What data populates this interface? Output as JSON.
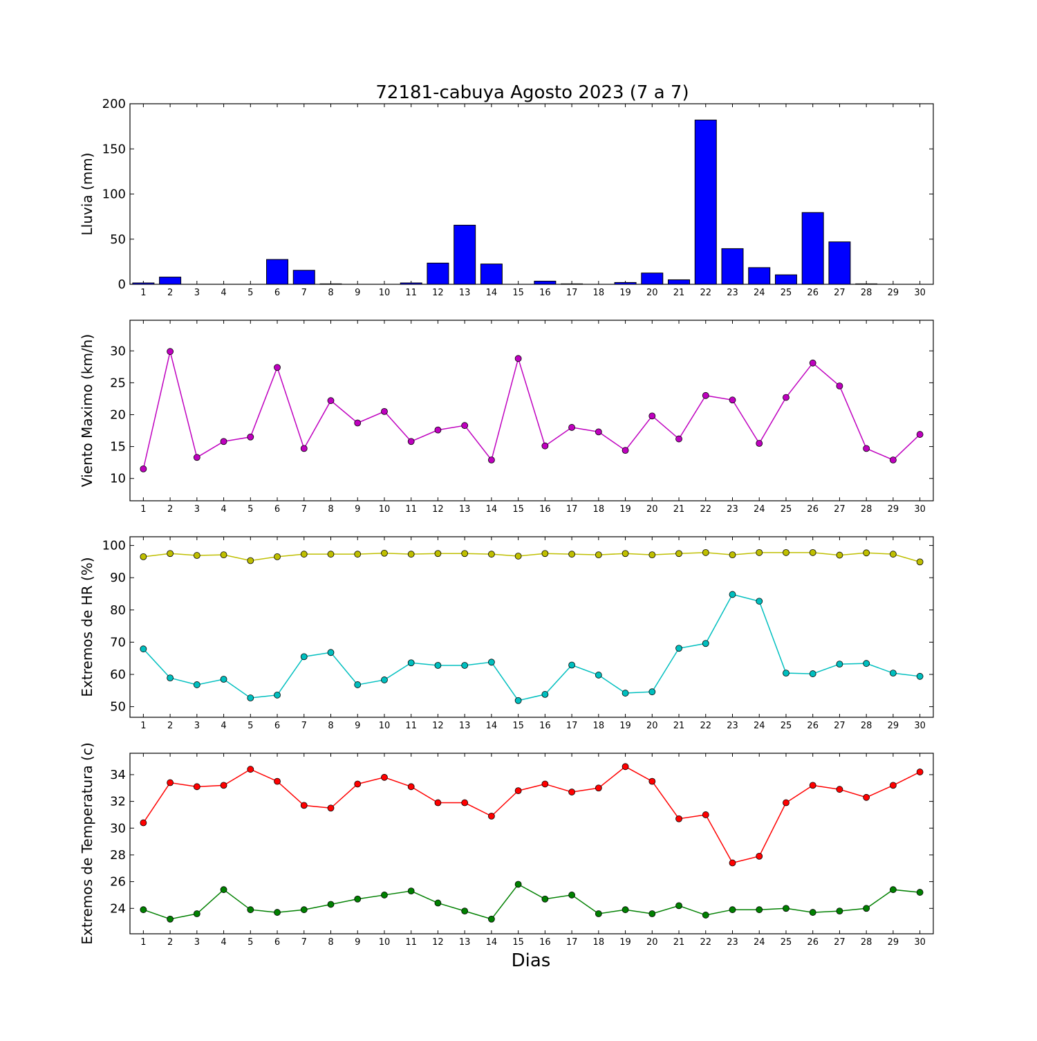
{
  "title": "72181-cabuya Agosto 2023  (7 a 7)",
  "chart_data": [
    {
      "type": "bar",
      "ylabel": "Lluvia (mm)",
      "ylim": [
        0,
        200
      ],
      "yticks": [
        0,
        50,
        100,
        150,
        200
      ],
      "categories": [
        "1",
        "2",
        "3",
        "4",
        "5",
        "6",
        "7",
        "8",
        "9",
        "10",
        "11",
        "12",
        "13",
        "14",
        "15",
        "16",
        "17",
        "18",
        "19",
        "20",
        "21",
        "22",
        "23",
        "24",
        "25",
        "26",
        "27",
        "28",
        "29",
        "30"
      ],
      "colors": {
        "bar": "#0000ff"
      },
      "values": [
        1.5,
        8.0,
        0,
        0,
        0,
        27.5,
        15.5,
        0.5,
        0,
        0,
        1.5,
        23.5,
        65.5,
        22.5,
        0,
        3.5,
        0.5,
        0,
        2.0,
        12.5,
        5.0,
        182.0,
        39.5,
        18.5,
        10.5,
        79.5,
        47.0,
        0.5,
        0,
        0
      ]
    },
    {
      "type": "line",
      "ylabel": "Viento Maximo (km/h)",
      "ylim": [
        6.5,
        34.8
      ],
      "yticks": [
        10,
        15,
        20,
        25,
        30
      ],
      "categories": [
        "1",
        "2",
        "3",
        "4",
        "5",
        "6",
        "7",
        "8",
        "9",
        "10",
        "11",
        "12",
        "13",
        "14",
        "15",
        "16",
        "17",
        "18",
        "19",
        "20",
        "21",
        "22",
        "23",
        "24",
        "25",
        "26",
        "27",
        "28",
        "29",
        "30"
      ],
      "series": [
        {
          "color": "#bf00bf",
          "values": [
            11.5,
            29.9,
            13.3,
            15.8,
            16.5,
            27.4,
            14.7,
            22.2,
            18.7,
            20.5,
            15.8,
            17.6,
            18.3,
            12.9,
            28.8,
            15.1,
            18.0,
            17.3,
            14.4,
            19.8,
            16.2,
            23.0,
            22.3,
            15.5,
            22.7,
            28.1,
            24.5,
            14.7,
            12.9,
            16.9
          ]
        }
      ]
    },
    {
      "type": "line",
      "ylabel": "Extremos de HR (%)",
      "ylim": [
        46.7,
        102.7
      ],
      "yticks": [
        50,
        60,
        70,
        80,
        90,
        100
      ],
      "categories": [
        "1",
        "2",
        "3",
        "4",
        "5",
        "6",
        "7",
        "8",
        "9",
        "10",
        "11",
        "12",
        "13",
        "14",
        "15",
        "16",
        "17",
        "18",
        "19",
        "20",
        "21",
        "22",
        "23",
        "24",
        "25",
        "26",
        "27",
        "28",
        "29",
        "30"
      ],
      "series": [
        {
          "color": "#bfbf00",
          "values": [
            96.5,
            97.5,
            96.9,
            97.1,
            95.3,
            96.5,
            97.3,
            97.3,
            97.3,
            97.6,
            97.3,
            97.5,
            97.5,
            97.3,
            96.7,
            97.5,
            97.3,
            97.1,
            97.5,
            97.1,
            97.5,
            97.8,
            97.1,
            97.8,
            97.8,
            97.8,
            97.0,
            97.7,
            97.3,
            94.9
          ]
        },
        {
          "color": "#00bfbf",
          "values": [
            67.9,
            58.9,
            56.8,
            58.5,
            52.7,
            53.6,
            65.5,
            66.8,
            56.8,
            58.3,
            63.6,
            62.8,
            62.8,
            63.8,
            51.9,
            53.8,
            62.9,
            59.8,
            54.2,
            54.6,
            68.1,
            69.6,
            84.8,
            82.7,
            60.4,
            60.2,
            63.2,
            63.4,
            60.4,
            59.4
          ]
        }
      ]
    },
    {
      "type": "line",
      "xlabel": "Dias",
      "ylabel": "Extremos de Temperatura (c)",
      "ylim": [
        22.1,
        35.6
      ],
      "yticks": [
        24,
        26,
        28,
        30,
        32,
        34
      ],
      "categories": [
        "1",
        "2",
        "3",
        "4",
        "5",
        "6",
        "7",
        "8",
        "9",
        "10",
        "11",
        "12",
        "13",
        "14",
        "15",
        "16",
        "17",
        "18",
        "19",
        "20",
        "21",
        "22",
        "23",
        "24",
        "25",
        "26",
        "27",
        "28",
        "29",
        "30"
      ],
      "series": [
        {
          "color": "#ff0000",
          "values": [
            30.4,
            33.4,
            33.1,
            33.2,
            34.4,
            33.5,
            31.7,
            31.5,
            33.3,
            33.8,
            33.1,
            31.9,
            31.9,
            30.9,
            32.8,
            33.3,
            32.7,
            33.0,
            34.6,
            33.5,
            30.7,
            31.0,
            27.4,
            27.9,
            31.9,
            33.2,
            32.9,
            32.3,
            33.2,
            34.2
          ]
        },
        {
          "color": "#008000",
          "values": [
            23.9,
            23.2,
            23.6,
            25.4,
            23.9,
            23.7,
            23.9,
            24.3,
            24.7,
            25.0,
            25.3,
            24.4,
            23.8,
            23.2,
            25.8,
            24.7,
            25.0,
            23.6,
            23.9,
            23.6,
            24.2,
            23.5,
            23.9,
            23.9,
            24.0,
            23.7,
            23.8,
            24.0,
            25.4,
            25.2
          ]
        }
      ]
    }
  ]
}
